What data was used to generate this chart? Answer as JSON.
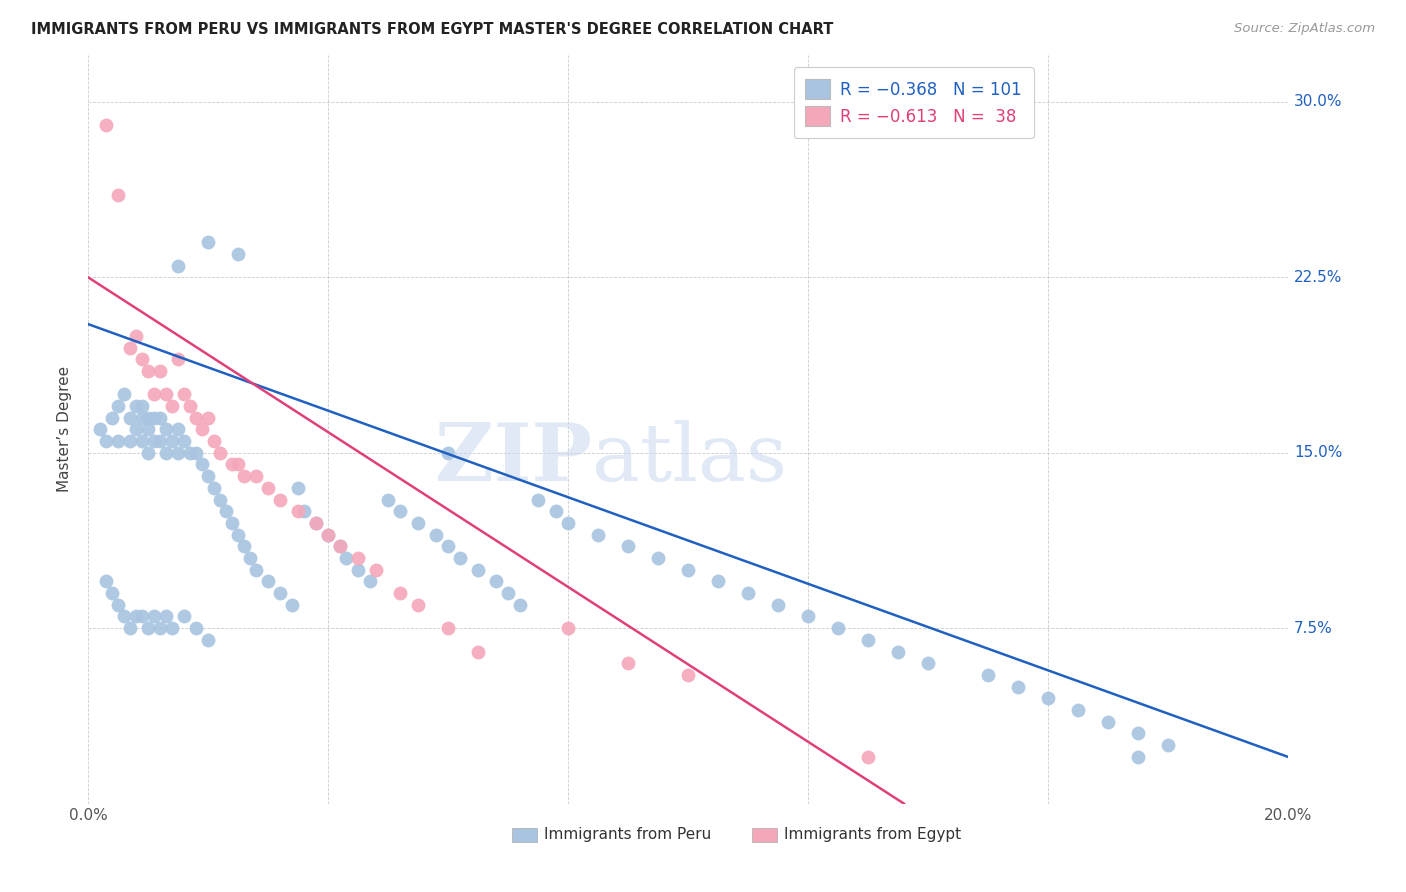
{
  "title": "IMMIGRANTS FROM PERU VS IMMIGRANTS FROM EGYPT MASTER'S DEGREE CORRELATION CHART",
  "source": "Source: ZipAtlas.com",
  "ylabel": "Master’s Degree",
  "legend_label_blue": "Immigrants from Peru",
  "legend_label_pink": "Immigrants from Egypt",
  "blue_color": "#a8c4e0",
  "pink_color": "#f4a7b9",
  "line_blue_color": "#2060c0",
  "line_pink_color": "#e0407a",
  "xlim": [
    0.0,
    0.2
  ],
  "ylim": [
    0.0,
    0.32
  ],
  "right_ytick_vals": [
    0.3,
    0.225,
    0.15,
    0.075
  ],
  "right_ytick_labels": [
    "30.0%",
    "22.5%",
    "15.0%",
    "7.5%"
  ],
  "blue_line_x": [
    0.0,
    0.2
  ],
  "blue_line_y": [
    0.205,
    0.02
  ],
  "pink_line_x": [
    0.0,
    0.136
  ],
  "pink_line_y": [
    0.225,
    0.0
  ],
  "blue_scatter_x": [
    0.002,
    0.003,
    0.003,
    0.004,
    0.004,
    0.005,
    0.005,
    0.005,
    0.006,
    0.006,
    0.007,
    0.007,
    0.007,
    0.008,
    0.008,
    0.008,
    0.009,
    0.009,
    0.009,
    0.009,
    0.01,
    0.01,
    0.01,
    0.01,
    0.011,
    0.011,
    0.011,
    0.012,
    0.012,
    0.012,
    0.013,
    0.013,
    0.013,
    0.014,
    0.014,
    0.015,
    0.015,
    0.016,
    0.016,
    0.017,
    0.018,
    0.018,
    0.019,
    0.02,
    0.02,
    0.021,
    0.022,
    0.023,
    0.024,
    0.025,
    0.026,
    0.027,
    0.028,
    0.03,
    0.032,
    0.034,
    0.035,
    0.036,
    0.038,
    0.04,
    0.042,
    0.043,
    0.045,
    0.047,
    0.05,
    0.052,
    0.055,
    0.058,
    0.06,
    0.062,
    0.065,
    0.068,
    0.07,
    0.072,
    0.075,
    0.078,
    0.08,
    0.085,
    0.09,
    0.095,
    0.1,
    0.105,
    0.11,
    0.115,
    0.12,
    0.125,
    0.13,
    0.135,
    0.14,
    0.15,
    0.155,
    0.16,
    0.165,
    0.17,
    0.175,
    0.18,
    0.015,
    0.02,
    0.025,
    0.06,
    0.175
  ],
  "blue_scatter_y": [
    0.16,
    0.155,
    0.095,
    0.165,
    0.09,
    0.17,
    0.155,
    0.085,
    0.175,
    0.08,
    0.165,
    0.155,
    0.075,
    0.17,
    0.16,
    0.08,
    0.17,
    0.165,
    0.155,
    0.08,
    0.165,
    0.16,
    0.15,
    0.075,
    0.165,
    0.155,
    0.08,
    0.165,
    0.155,
    0.075,
    0.16,
    0.15,
    0.08,
    0.155,
    0.075,
    0.16,
    0.15,
    0.155,
    0.08,
    0.15,
    0.15,
    0.075,
    0.145,
    0.14,
    0.07,
    0.135,
    0.13,
    0.125,
    0.12,
    0.115,
    0.11,
    0.105,
    0.1,
    0.095,
    0.09,
    0.085,
    0.135,
    0.125,
    0.12,
    0.115,
    0.11,
    0.105,
    0.1,
    0.095,
    0.13,
    0.125,
    0.12,
    0.115,
    0.11,
    0.105,
    0.1,
    0.095,
    0.09,
    0.085,
    0.13,
    0.125,
    0.12,
    0.115,
    0.11,
    0.105,
    0.1,
    0.095,
    0.09,
    0.085,
    0.08,
    0.075,
    0.07,
    0.065,
    0.06,
    0.055,
    0.05,
    0.045,
    0.04,
    0.035,
    0.03,
    0.025,
    0.23,
    0.24,
    0.235,
    0.15,
    0.02
  ],
  "pink_scatter_x": [
    0.003,
    0.005,
    0.007,
    0.008,
    0.009,
    0.01,
    0.011,
    0.012,
    0.013,
    0.014,
    0.015,
    0.016,
    0.017,
    0.018,
    0.019,
    0.02,
    0.021,
    0.022,
    0.024,
    0.025,
    0.026,
    0.028,
    0.03,
    0.032,
    0.035,
    0.038,
    0.04,
    0.042,
    0.045,
    0.048,
    0.052,
    0.055,
    0.06,
    0.065,
    0.08,
    0.09,
    0.1,
    0.13
  ],
  "pink_scatter_y": [
    0.29,
    0.26,
    0.195,
    0.2,
    0.19,
    0.185,
    0.175,
    0.185,
    0.175,
    0.17,
    0.19,
    0.175,
    0.17,
    0.165,
    0.16,
    0.165,
    0.155,
    0.15,
    0.145,
    0.145,
    0.14,
    0.14,
    0.135,
    0.13,
    0.125,
    0.12,
    0.115,
    0.11,
    0.105,
    0.1,
    0.09,
    0.085,
    0.075,
    0.065,
    0.075,
    0.06,
    0.055,
    0.02
  ]
}
